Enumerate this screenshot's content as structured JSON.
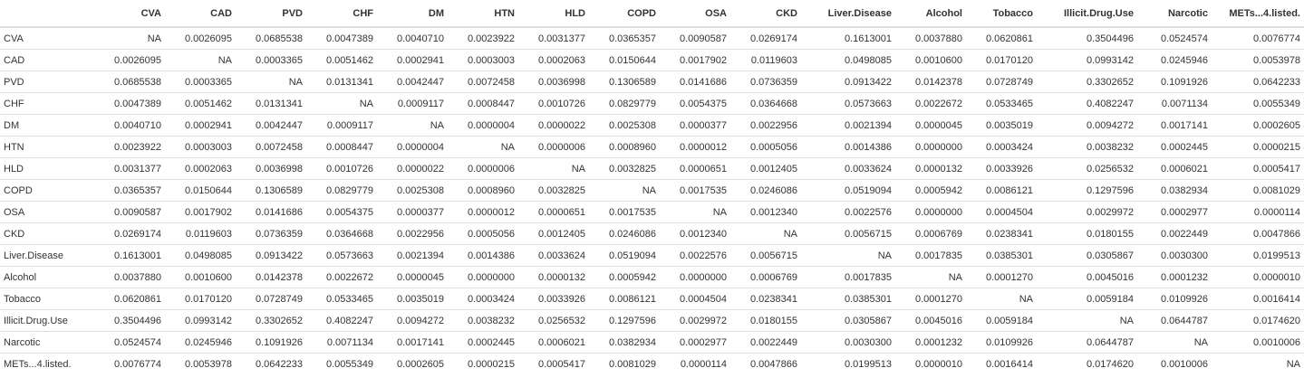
{
  "table": {
    "columns": [
      "CVA",
      "CAD",
      "PVD",
      "CHF",
      "DM",
      "HTN",
      "HLD",
      "COPD",
      "OSA",
      "CKD",
      "Liver.Disease",
      "Alcohol",
      "Tobacco",
      "Illicit.Drug.Use",
      "Narcotic",
      "METs...4.listed."
    ],
    "rows": [
      {
        "name": "CVA",
        "values": [
          "NA",
          "0.0026095",
          "0.0685538",
          "0.0047389",
          "0.0040710",
          "0.0023922",
          "0.0031377",
          "0.0365357",
          "0.0090587",
          "0.0269174",
          "0.1613001",
          "0.0037880",
          "0.0620861",
          "0.3504496",
          "0.0524574",
          "0.0076774"
        ]
      },
      {
        "name": "CAD",
        "values": [
          "0.0026095",
          "NA",
          "0.0003365",
          "0.0051462",
          "0.0002941",
          "0.0003003",
          "0.0002063",
          "0.0150644",
          "0.0017902",
          "0.0119603",
          "0.0498085",
          "0.0010600",
          "0.0170120",
          "0.0993142",
          "0.0245946",
          "0.0053978"
        ]
      },
      {
        "name": "PVD",
        "values": [
          "0.0685538",
          "0.0003365",
          "NA",
          "0.0131341",
          "0.0042447",
          "0.0072458",
          "0.0036998",
          "0.1306589",
          "0.0141686",
          "0.0736359",
          "0.0913422",
          "0.0142378",
          "0.0728749",
          "0.3302652",
          "0.1091926",
          "0.0642233"
        ]
      },
      {
        "name": "CHF",
        "values": [
          "0.0047389",
          "0.0051462",
          "0.0131341",
          "NA",
          "0.0009117",
          "0.0008447",
          "0.0010726",
          "0.0829779",
          "0.0054375",
          "0.0364668",
          "0.0573663",
          "0.0022672",
          "0.0533465",
          "0.4082247",
          "0.0071134",
          "0.0055349"
        ]
      },
      {
        "name": "DM",
        "values": [
          "0.0040710",
          "0.0002941",
          "0.0042447",
          "0.0009117",
          "NA",
          "0.0000004",
          "0.0000022",
          "0.0025308",
          "0.0000377",
          "0.0022956",
          "0.0021394",
          "0.0000045",
          "0.0035019",
          "0.0094272",
          "0.0017141",
          "0.0002605"
        ]
      },
      {
        "name": "HTN",
        "values": [
          "0.0023922",
          "0.0003003",
          "0.0072458",
          "0.0008447",
          "0.0000004",
          "NA",
          "0.0000006",
          "0.0008960",
          "0.0000012",
          "0.0005056",
          "0.0014386",
          "0.0000000",
          "0.0003424",
          "0.0038232",
          "0.0002445",
          "0.0000215"
        ]
      },
      {
        "name": "HLD",
        "values": [
          "0.0031377",
          "0.0002063",
          "0.0036998",
          "0.0010726",
          "0.0000022",
          "0.0000006",
          "NA",
          "0.0032825",
          "0.0000651",
          "0.0012405",
          "0.0033624",
          "0.0000132",
          "0.0033926",
          "0.0256532",
          "0.0006021",
          "0.0005417"
        ]
      },
      {
        "name": "COPD",
        "values": [
          "0.0365357",
          "0.0150644",
          "0.1306589",
          "0.0829779",
          "0.0025308",
          "0.0008960",
          "0.0032825",
          "NA",
          "0.0017535",
          "0.0246086",
          "0.0519094",
          "0.0005942",
          "0.0086121",
          "0.1297596",
          "0.0382934",
          "0.0081029"
        ]
      },
      {
        "name": "OSA",
        "values": [
          "0.0090587",
          "0.0017902",
          "0.0141686",
          "0.0054375",
          "0.0000377",
          "0.0000012",
          "0.0000651",
          "0.0017535",
          "NA",
          "0.0012340",
          "0.0022576",
          "0.0000000",
          "0.0004504",
          "0.0029972",
          "0.0002977",
          "0.0000114"
        ]
      },
      {
        "name": "CKD",
        "values": [
          "0.0269174",
          "0.0119603",
          "0.0736359",
          "0.0364668",
          "0.0022956",
          "0.0005056",
          "0.0012405",
          "0.0246086",
          "0.0012340",
          "NA",
          "0.0056715",
          "0.0006769",
          "0.0238341",
          "0.0180155",
          "0.0022449",
          "0.0047866"
        ]
      },
      {
        "name": "Liver.Disease",
        "values": [
          "0.1613001",
          "0.0498085",
          "0.0913422",
          "0.0573663",
          "0.0021394",
          "0.0014386",
          "0.0033624",
          "0.0519094",
          "0.0022576",
          "0.0056715",
          "NA",
          "0.0017835",
          "0.0385301",
          "0.0305867",
          "0.0030300",
          "0.0199513"
        ]
      },
      {
        "name": "Alcohol",
        "values": [
          "0.0037880",
          "0.0010600",
          "0.0142378",
          "0.0022672",
          "0.0000045",
          "0.0000000",
          "0.0000132",
          "0.0005942",
          "0.0000000",
          "0.0006769",
          "0.0017835",
          "NA",
          "0.0001270",
          "0.0045016",
          "0.0001232",
          "0.0000010"
        ]
      },
      {
        "name": "Tobacco",
        "values": [
          "0.0620861",
          "0.0170120",
          "0.0728749",
          "0.0533465",
          "0.0035019",
          "0.0003424",
          "0.0033926",
          "0.0086121",
          "0.0004504",
          "0.0238341",
          "0.0385301",
          "0.0001270",
          "NA",
          "0.0059184",
          "0.0109926",
          "0.0016414"
        ]
      },
      {
        "name": "Illicit.Drug.Use",
        "values": [
          "0.3504496",
          "0.0993142",
          "0.3302652",
          "0.4082247",
          "0.0094272",
          "0.0038232",
          "0.0256532",
          "0.1297596",
          "0.0029972",
          "0.0180155",
          "0.0305867",
          "0.0045016",
          "0.0059184",
          "NA",
          "0.0644787",
          "0.0174620"
        ]
      },
      {
        "name": "Narcotic",
        "values": [
          "0.0524574",
          "0.0245946",
          "0.1091926",
          "0.0071134",
          "0.0017141",
          "0.0002445",
          "0.0006021",
          "0.0382934",
          "0.0002977",
          "0.0022449",
          "0.0030300",
          "0.0001232",
          "0.0109926",
          "0.0644787",
          "NA",
          "0.0010006"
        ]
      },
      {
        "name": "METs...4.listed.",
        "values": [
          "0.0076774",
          "0.0053978",
          "0.0642233",
          "0.0055349",
          "0.0002605",
          "0.0000215",
          "0.0005417",
          "0.0081029",
          "0.0000114",
          "0.0047866",
          "0.0199513",
          "0.0000010",
          "0.0016414",
          "0.0174620",
          "0.0010006",
          "NA"
        ]
      }
    ]
  }
}
